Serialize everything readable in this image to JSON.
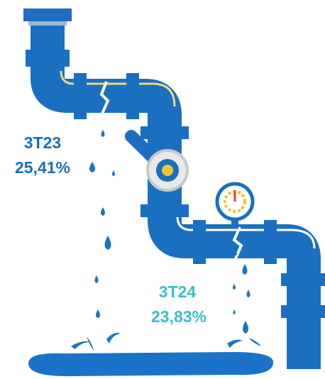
{
  "labels": [
    {
      "period": "3T23",
      "value": "25,41%"
    },
    {
      "period": "3T24",
      "value": "23,83%"
    }
  ]
}
